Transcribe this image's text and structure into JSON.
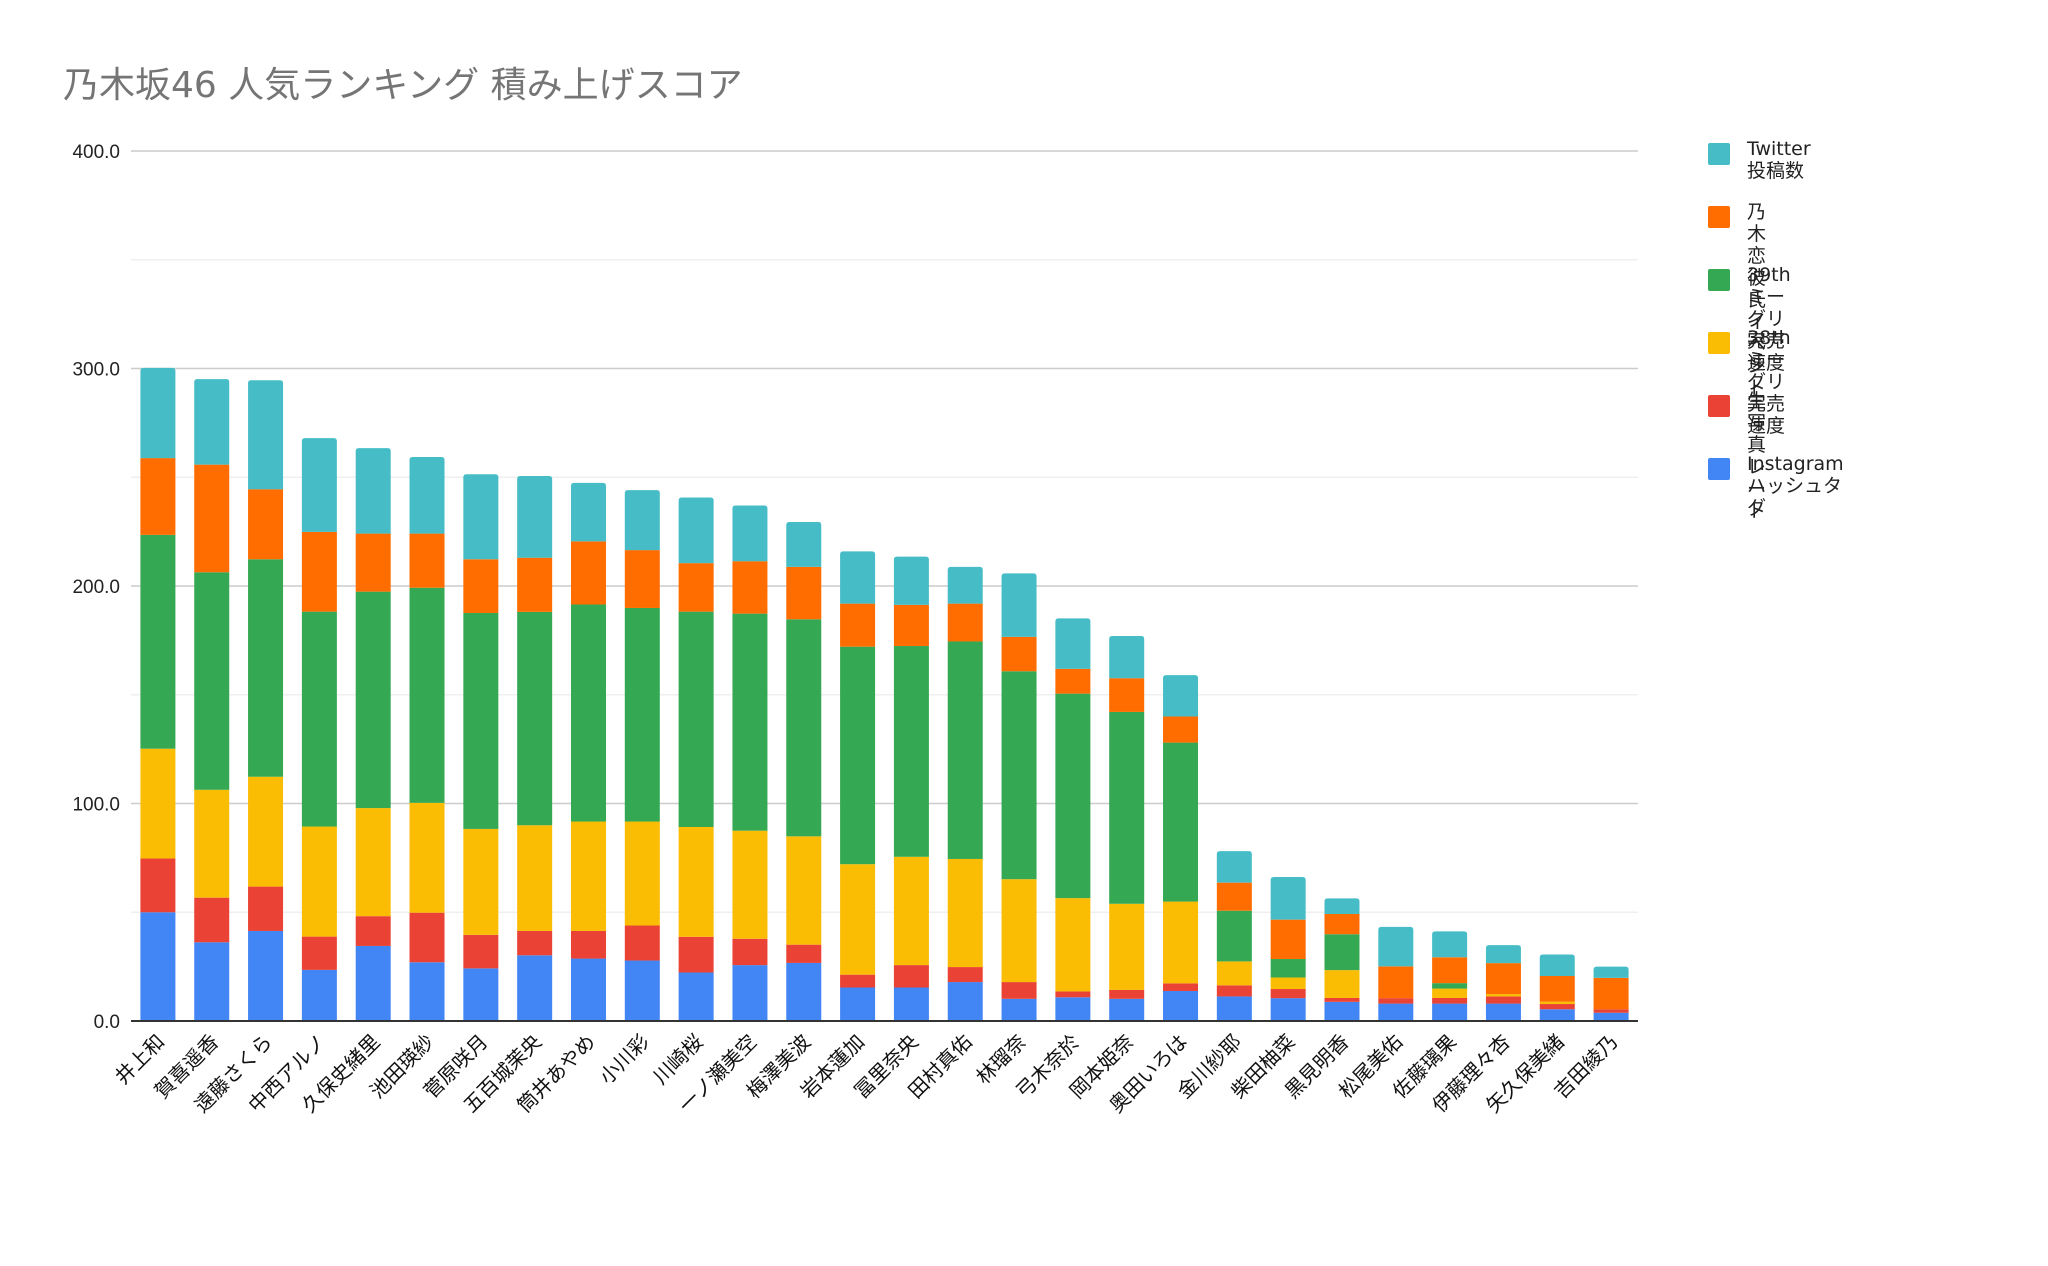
{
  "chart_data": {
    "type": "bar",
    "stacked": true,
    "title": "乃木坂46 人気ランキング 積み上げスコア",
    "xlabel": "",
    "ylabel": "",
    "ylim": [
      0,
      400
    ],
    "yticks": [
      "0.0",
      "100.0",
      "200.0",
      "300.0",
      "400.0"
    ],
    "ytick_values": [
      0,
      100,
      200,
      300,
      400
    ],
    "minor_grid_values": [
      50,
      150,
      250,
      350
    ],
    "grid": true,
    "legend_position": "right",
    "categories": [
      "井上和",
      "賀喜遥香",
      "遠藤さくら",
      "中西アルノ",
      "久保史緒里",
      "池田瑛紗",
      "菅原咲月",
      "五百城茉央",
      "筒井あやめ",
      "小川彩",
      "川崎桜",
      "一ノ瀬美空",
      "梅澤美波",
      "岩本蓮加",
      "冨里奈央",
      "田村真佑",
      "林瑠奈",
      "弓木奈於",
      "岡本姫奈",
      "奥田いろは",
      "金川紗耶",
      "柴田柚菜",
      "黒見明香",
      "松尾美佑",
      "佐藤璃果",
      "伊藤理々杏",
      "矢久保美緒",
      "吉田綾乃"
    ],
    "series": [
      {
        "name": "Instagram\nハッシュタグ",
        "color": "#4285F4",
        "values": [
          50.0,
          36.2,
          41.4,
          23.5,
          34.5,
          27.0,
          24.2,
          30.2,
          28.7,
          27.8,
          22.3,
          25.7,
          26.7,
          15.4,
          15.4,
          17.9,
          10.2,
          10.9,
          10.2,
          13.8,
          11.3,
          10.5,
          8.8,
          8.0,
          8.0,
          8.0,
          5.4,
          3.8
        ]
      },
      {
        "name": "生写真\nレート",
        "color": "#EA4335",
        "values": [
          24.7,
          20.5,
          20.4,
          15.3,
          13.7,
          22.8,
          15.4,
          11.2,
          12.7,
          16.1,
          16.4,
          12.1,
          8.4,
          5.9,
          10.3,
          6.9,
          7.7,
          2.7,
          4.1,
          3.5,
          5.1,
          4.2,
          1.8,
          2.5,
          2.6,
          3.3,
          2.4,
          1.6
        ]
      },
      {
        "name": "38th\nミーグリ完売速度",
        "color": "#FBBC04",
        "values": [
          50.5,
          49.6,
          50.5,
          50.6,
          49.7,
          50.5,
          48.7,
          48.6,
          50.3,
          47.8,
          50.5,
          49.7,
          49.8,
          50.8,
          49.8,
          49.7,
          47.3,
          42.9,
          39.6,
          37.6,
          11.0,
          5.3,
          12.8,
          0.0,
          4.3,
          1.1,
          1.1,
          0.0
        ]
      },
      {
        "name": "39th\nミーグリ完売速度",
        "color": "#34A853",
        "values": [
          98.3,
          100.0,
          100.0,
          98.8,
          99.5,
          98.9,
          99.3,
          98.1,
          99.8,
          98.2,
          99.0,
          99.8,
          99.8,
          100.0,
          96.9,
          100.0,
          95.6,
          94.0,
          88.2,
          73.1,
          23.3,
          8.5,
          16.5,
          0.0,
          2.5,
          0.0,
          0.0,
          0.0
        ]
      },
      {
        "name": "乃木恋\n彼氏イベント",
        "color": "#FF6D01",
        "values": [
          35.3,
          49.5,
          32.2,
          36.7,
          26.7,
          24.9,
          24.7,
          24.9,
          29.0,
          26.6,
          22.3,
          24.1,
          24.1,
          19.8,
          18.9,
          17.4,
          15.8,
          11.4,
          15.5,
          12.0,
          12.9,
          18.1,
          9.3,
          14.6,
          11.9,
          14.2,
          11.8,
          14.4
        ]
      },
      {
        "name": "Twitter投稿数",
        "color": "#46BDC6",
        "values": [
          41.5,
          39.3,
          50.1,
          43.1,
          39.3,
          35.2,
          39.1,
          37.6,
          26.9,
          27.6,
          30.2,
          25.6,
          20.6,
          24.0,
          22.2,
          16.9,
          29.2,
          23.2,
          19.4,
          19.0,
          14.5,
          19.6,
          7.2,
          18.2,
          11.9,
          8.3,
          9.9,
          5.2
        ]
      }
    ]
  }
}
